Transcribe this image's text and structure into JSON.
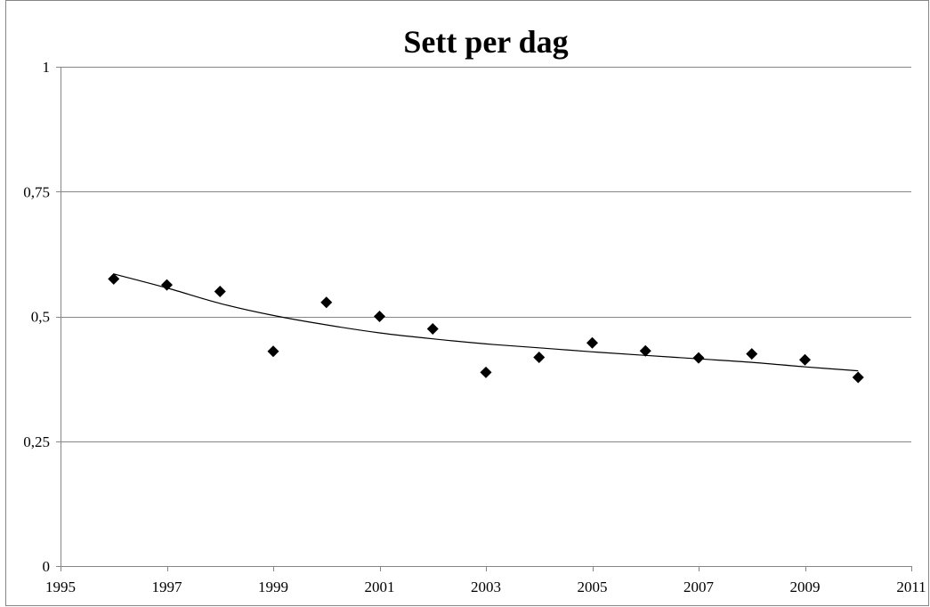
{
  "chart_data": {
    "type": "scatter",
    "title": "Sett per dag",
    "xlabel": "",
    "ylabel": "",
    "xlim": [
      1995,
      2011
    ],
    "ylim": [
      0,
      1
    ],
    "x_ticks": [
      1995,
      1997,
      1999,
      2001,
      2003,
      2005,
      2007,
      2009,
      2011
    ],
    "x_tick_labels": [
      "1995",
      "1997",
      "1999",
      "2001",
      "2003",
      "2005",
      "2007",
      "2009",
      "2011"
    ],
    "y_ticks": [
      0,
      0.25,
      0.5,
      0.75,
      1
    ],
    "y_tick_labels": [
      "0",
      "0,25",
      "0,5",
      "0,75",
      "1"
    ],
    "grid": true,
    "legend": "none",
    "series": [
      {
        "marker": "diamond",
        "color": "#000000",
        "points": [
          {
            "x": 1996,
            "y": 0.575
          },
          {
            "x": 1997,
            "y": 0.563
          },
          {
            "x": 1998,
            "y": 0.55
          },
          {
            "x": 1999,
            "y": 0.43
          },
          {
            "x": 2000,
            "y": 0.528
          },
          {
            "x": 2001,
            "y": 0.5
          },
          {
            "x": 2002,
            "y": 0.475
          },
          {
            "x": 2003,
            "y": 0.388
          },
          {
            "x": 2004,
            "y": 0.418
          },
          {
            "x": 2005,
            "y": 0.447
          },
          {
            "x": 2006,
            "y": 0.431
          },
          {
            "x": 2007,
            "y": 0.417
          },
          {
            "x": 2008,
            "y": 0.425
          },
          {
            "x": 2009,
            "y": 0.413
          },
          {
            "x": 2010,
            "y": 0.378
          }
        ]
      }
    ],
    "trendline": {
      "type": "logarithmic",
      "color": "#000000",
      "points": [
        {
          "x": 1996,
          "y": 0.585
        },
        {
          "x": 1997,
          "y": 0.557
        },
        {
          "x": 1998,
          "y": 0.526
        },
        {
          "x": 1999,
          "y": 0.502
        },
        {
          "x": 2000,
          "y": 0.483
        },
        {
          "x": 2001,
          "y": 0.467
        },
        {
          "x": 2002,
          "y": 0.455
        },
        {
          "x": 2003,
          "y": 0.445
        },
        {
          "x": 2004,
          "y": 0.437
        },
        {
          "x": 2005,
          "y": 0.429
        },
        {
          "x": 2006,
          "y": 0.422
        },
        {
          "x": 2007,
          "y": 0.415
        },
        {
          "x": 2008,
          "y": 0.408
        },
        {
          "x": 2009,
          "y": 0.399
        },
        {
          "x": 2010,
          "y": 0.391
        }
      ]
    }
  }
}
